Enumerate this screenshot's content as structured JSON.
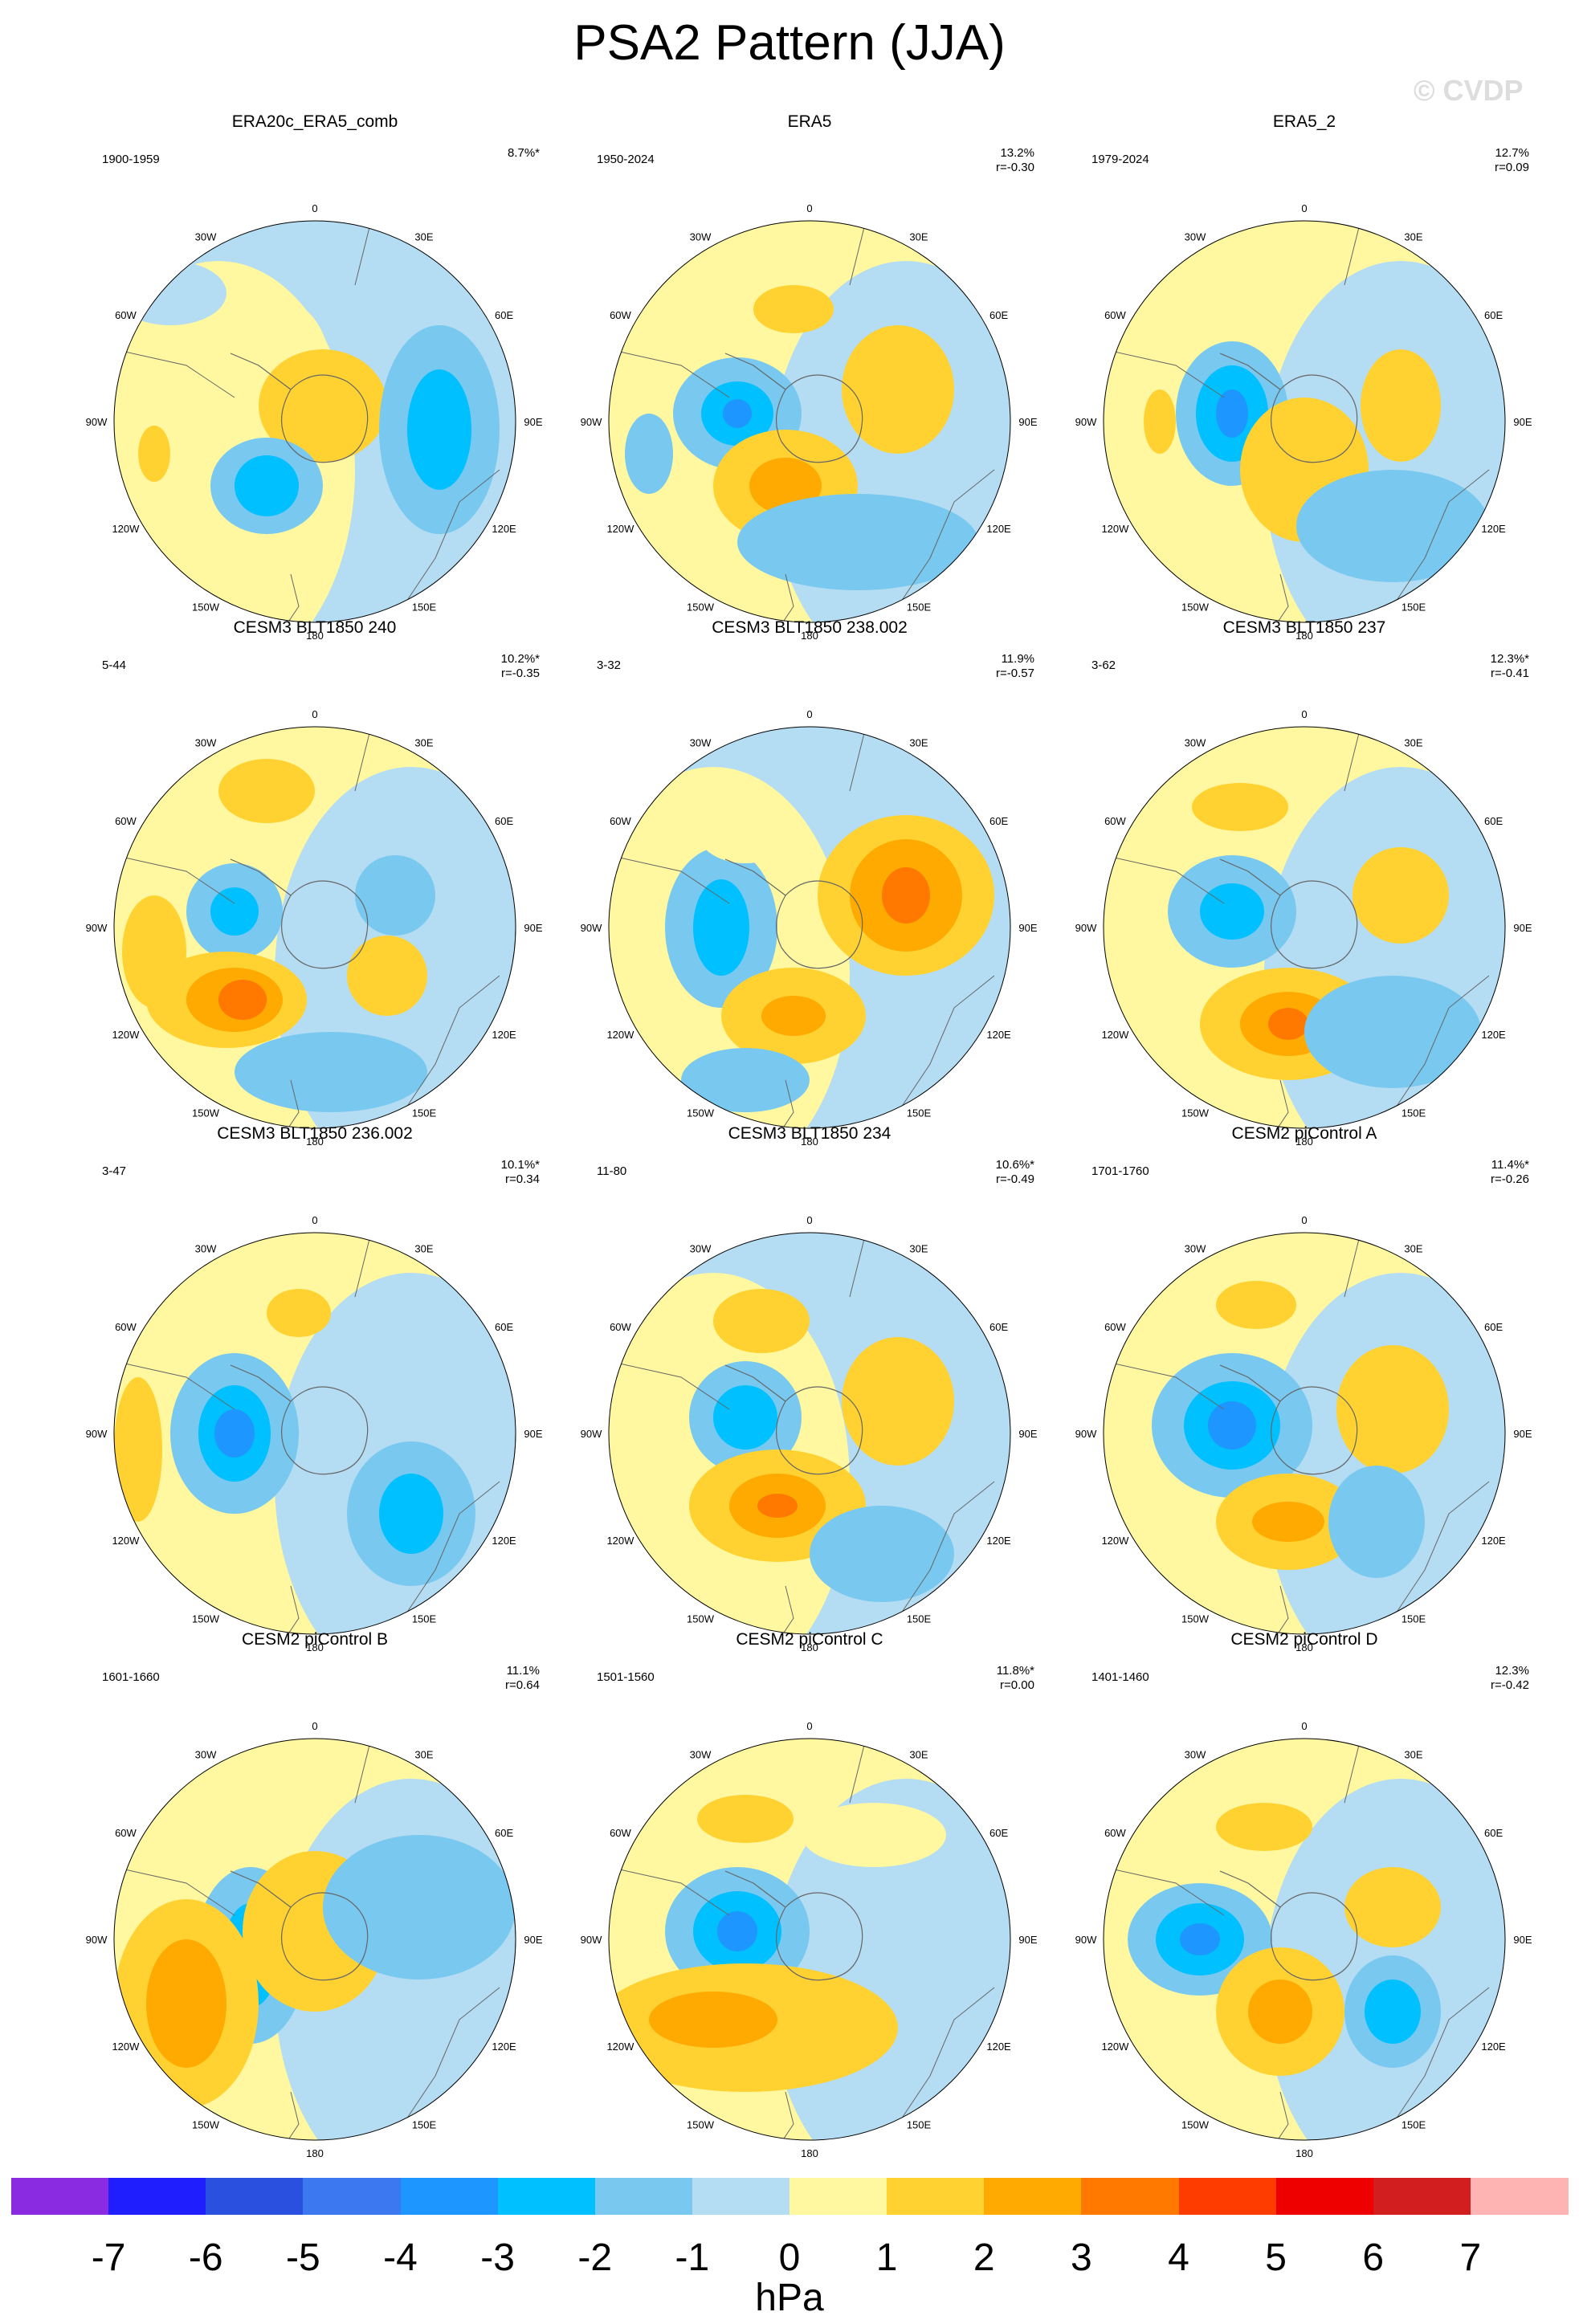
{
  "title": "PSA2 Pattern (JJA)",
  "watermark": "© CVDP",
  "longitude_labels": [
    "0",
    "30E",
    "60E",
    "90E",
    "120E",
    "150E",
    "180",
    "150W",
    "120W",
    "90W",
    "60W",
    "30W"
  ],
  "panels": [
    {
      "title": "ERA20c_ERA5_comb",
      "period": "1900-1959",
      "pct": "8.7%*",
      "r": ""
    },
    {
      "title": "ERA5",
      "period": "1950-2024",
      "pct": "13.2%",
      "r": "r=-0.30"
    },
    {
      "title": "ERA5_2",
      "period": "1979-2024",
      "pct": "12.7%",
      "r": "r=0.09"
    },
    {
      "title": "CESM3 BLT1850 240",
      "period": "5-44",
      "pct": "10.2%*",
      "r": "r=-0.35"
    },
    {
      "title": "CESM3 BLT1850 238.002",
      "period": "3-32",
      "pct": "11.9%",
      "r": "r=-0.57"
    },
    {
      "title": "CESM3 BLT1850 237",
      "period": "3-62",
      "pct": "12.3%*",
      "r": "r=-0.41"
    },
    {
      "title": "CESM3 BLT1850 236.002",
      "period": "3-47",
      "pct": "10.1%*",
      "r": "r=0.34"
    },
    {
      "title": "CESM3 BLT1850 234",
      "period": "11-80",
      "pct": "10.6%*",
      "r": "r=-0.49"
    },
    {
      "title": "CESM2 piControl A",
      "period": "1701-1760",
      "pct": "11.4%*",
      "r": "r=-0.26"
    },
    {
      "title": "CESM2 piControl B",
      "period": "1601-1660",
      "pct": "11.1%",
      "r": "r=0.64"
    },
    {
      "title": "CESM2 piControl C",
      "period": "1501-1560",
      "pct": "11.8%*",
      "r": "r=0.00"
    },
    {
      "title": "CESM2 piControl D",
      "period": "1401-1460",
      "pct": "12.3%",
      "r": "r=-0.42"
    }
  ],
  "colorbar": {
    "colors": [
      "#8a2be2",
      "#1e1eff",
      "#2a50e0",
      "#3c78f0",
      "#1e96ff",
      "#00c0ff",
      "#78c8f0",
      "#b4dcf2",
      "#fff8a0",
      "#ffd232",
      "#ffaa00",
      "#ff7800",
      "#ff3c00",
      "#ee0000",
      "#d21e1e",
      "#ffb4b4"
    ],
    "labels": [
      "-7",
      "-6",
      "-5",
      "-4",
      "-3",
      "-2",
      "-1",
      "0",
      "1",
      "2",
      "3",
      "4",
      "5",
      "6",
      "7"
    ],
    "units": "hPa"
  },
  "anomaly_colors": {
    "n4": "#1e96ff",
    "n3": "#00c0ff",
    "n2": "#78c8f0",
    "n1": "#b4dcf2",
    "p1": "#fff8a0",
    "p2": "#ffd232",
    "p3": "#ffaa00",
    "p4": "#ff7800"
  }
}
